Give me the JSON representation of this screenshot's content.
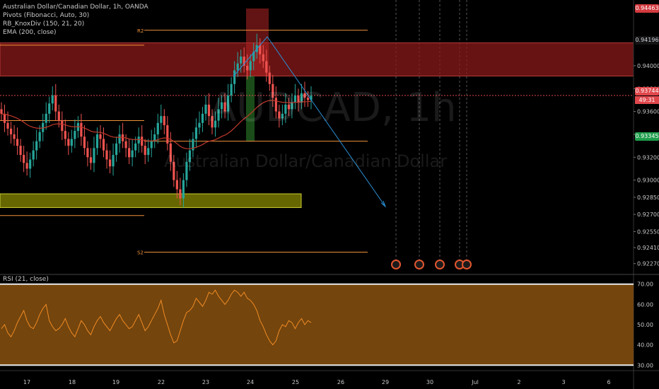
{
  "legend": {
    "symbol": "Australian Dollar/Canadian Dollar, 1h, OANDA",
    "pivots": "Pivots (Fibonacci, Auto, 30)",
    "knoxdiv": "RB_KnoxDiv (150, 21, 20)",
    "ema": "EMA (200, close)"
  },
  "watermark": {
    "ticker": "AUDCAD, 1h",
    "name": "Australian Dollar/Canadian Dollar"
  },
  "rsi": {
    "label": "RSI (21, close)"
  },
  "price_tags": [
    {
      "label": "0.94463",
      "kind": "red"
    },
    {
      "label": "0.94196",
      "kind": "neutral"
    },
    {
      "label": "0.93744",
      "kind": "red"
    },
    {
      "label": "0.93345",
      "kind": "green"
    }
  ],
  "countdown": "49:31",
  "chart_data": [
    {
      "type": "candlestick",
      "title": "Australian Dollar/Canadian Dollar, 1h, OANDA",
      "x_ticks": [
        "17",
        "18",
        "19",
        "22",
        "23",
        "24",
        "25",
        "26",
        "29",
        "30",
        "Jul",
        "2",
        "3",
        "6"
      ],
      "y_ticks": [
        0.944,
        0.942,
        0.94,
        0.938,
        0.936,
        0.934,
        0.932,
        0.93,
        0.9285,
        0.927,
        0.9255,
        0.9241,
        0.9227
      ],
      "y_tick_labels": [
        "",
        "",
        "0.94000",
        "0.93800",
        "0.93600",
        "0.93400",
        "0.93200",
        "0.93000",
        "0.92850",
        "0.92700",
        "0.92550",
        "0.92410",
        "0.92270"
      ],
      "ylim": [
        0.922,
        0.9455
      ],
      "pivots": [
        {
          "name": "R2",
          "value": 0.9431
        },
        {
          "name": "P",
          "value": 0.9334
        },
        {
          "name": "S2",
          "value": 0.9237
        }
      ],
      "zones": [
        {
          "name": "resistance",
          "top": 0.942,
          "bottom": 0.9391,
          "color": "#8b1a1a"
        },
        {
          "name": "support",
          "top": 0.9288,
          "bottom": 0.9276,
          "color": "#8a8a00"
        }
      ],
      "close_series": [
        0.9358,
        0.935,
        0.9345,
        0.934,
        0.9336,
        0.933,
        0.9322,
        0.9315,
        0.931,
        0.9318,
        0.9326,
        0.9334,
        0.9342,
        0.935,
        0.9358,
        0.9367,
        0.9374,
        0.936,
        0.9352,
        0.9343,
        0.9336,
        0.933,
        0.9336,
        0.9343,
        0.935,
        0.9338,
        0.9328,
        0.932,
        0.9315,
        0.9328,
        0.934,
        0.9336,
        0.9326,
        0.9318,
        0.9312,
        0.9322,
        0.9332,
        0.934,
        0.9334,
        0.9328,
        0.932,
        0.9326,
        0.9332,
        0.9338,
        0.933,
        0.9322,
        0.9328,
        0.9334,
        0.934,
        0.935,
        0.9356,
        0.9348,
        0.9332,
        0.9316,
        0.93,
        0.9292,
        0.9284,
        0.93,
        0.9316,
        0.9326,
        0.9336,
        0.9346,
        0.935,
        0.9358,
        0.9366,
        0.9356,
        0.9346,
        0.9352,
        0.9362,
        0.9368,
        0.936,
        0.9374,
        0.9384,
        0.9396,
        0.9402,
        0.9408,
        0.94,
        0.9396,
        0.9404,
        0.9412,
        0.9418,
        0.941,
        0.9404,
        0.9394,
        0.9384,
        0.9372,
        0.936,
        0.9354,
        0.9358,
        0.9366,
        0.9362,
        0.9368,
        0.9374,
        0.9368,
        0.9376,
        0.9372,
        0.937,
        0.9374
      ]
    },
    {
      "type": "line",
      "title": "RSI (21, close)",
      "y_ticks": [
        70,
        60,
        50,
        40,
        30
      ],
      "ylim": [
        28,
        72
      ],
      "levels": [
        70,
        30
      ],
      "values": [
        48,
        50,
        46,
        44,
        47,
        51,
        54,
        57,
        52,
        49,
        48,
        51,
        55,
        58,
        60,
        52,
        49,
        47,
        48,
        50,
        53,
        49,
        46,
        44,
        48,
        52,
        50,
        47,
        45,
        49,
        52,
        54,
        51,
        49,
        47,
        50,
        53,
        55,
        52,
        50,
        48,
        49,
        52,
        55,
        51,
        47,
        49,
        52,
        55,
        58,
        62,
        55,
        50,
        45,
        41,
        42,
        47,
        52,
        56,
        57,
        59,
        63,
        61,
        59,
        62,
        66,
        65,
        67,
        64,
        62,
        60,
        62,
        65,
        67,
        66,
        64,
        66,
        63,
        62,
        60,
        57,
        52,
        49,
        45,
        42,
        40,
        42,
        47,
        50,
        49,
        52,
        51,
        48,
        51,
        53,
        50,
        52,
        51
      ]
    }
  ]
}
